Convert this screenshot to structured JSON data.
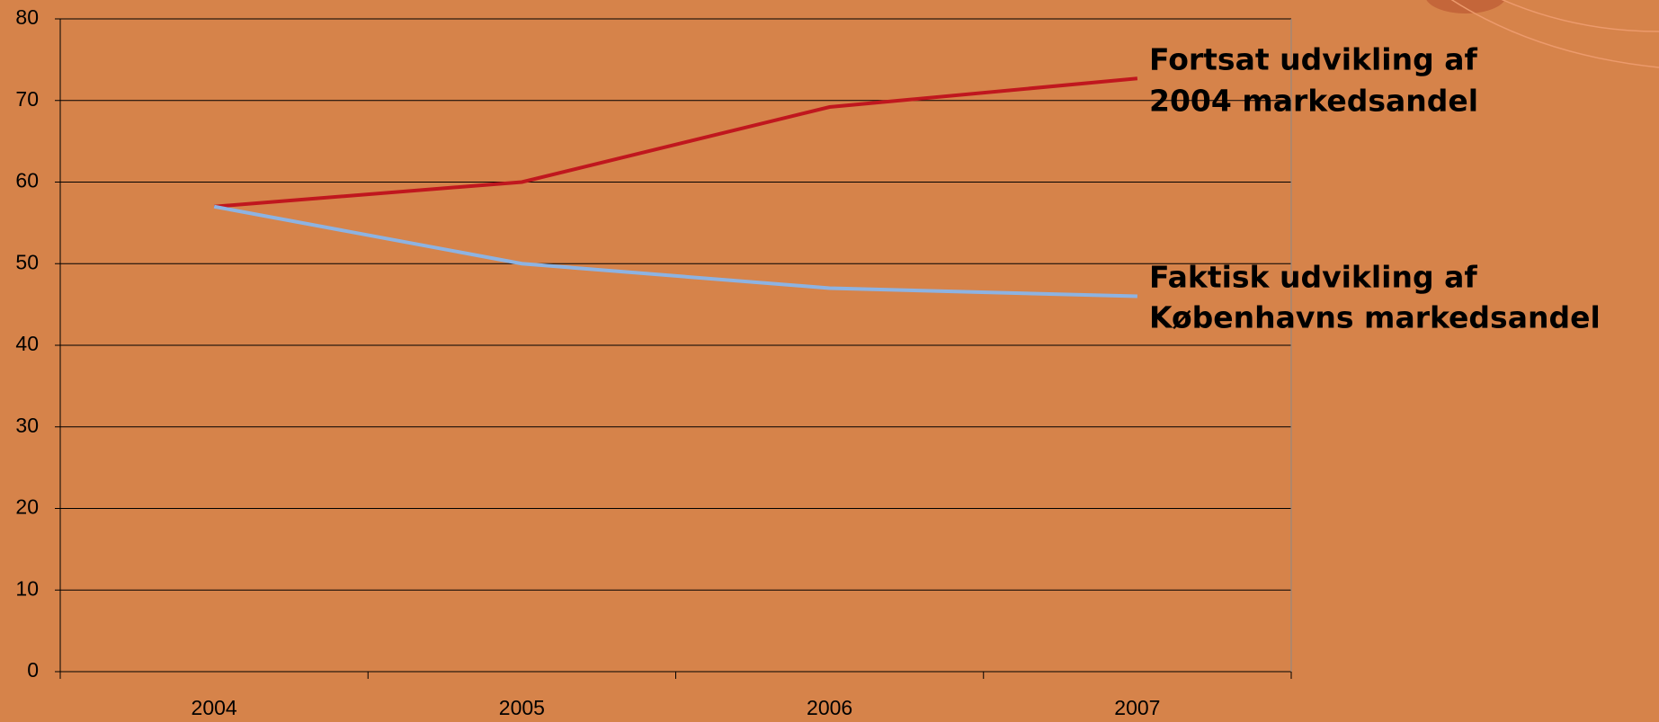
{
  "chart_data": {
    "type": "line",
    "categories": [
      "2004",
      "2005",
      "2006",
      "2007"
    ],
    "series": [
      {
        "color": "#c0171e",
        "values": [
          57,
          60,
          69.2,
          72.7
        ]
      },
      {
        "color": "#8db3e2",
        "values": [
          57,
          50,
          47,
          46
        ]
      }
    ],
    "annotations": [
      [
        "Fortsat udvikling af",
        "2004 markedsandel"
      ],
      [
        "Faktisk udvikling af",
        "Københavns markedsandel"
      ]
    ],
    "ylim": [
      0,
      80
    ],
    "yticks": [
      0,
      10,
      20,
      30,
      40,
      50,
      60,
      70,
      80
    ],
    "grid": true
  }
}
